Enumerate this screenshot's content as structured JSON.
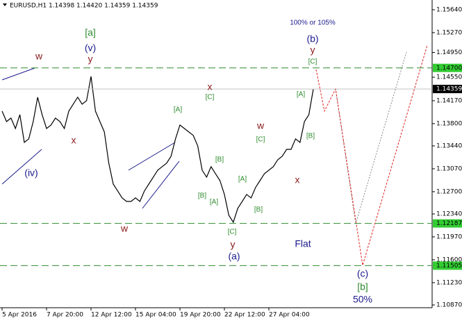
{
  "chart_data": {
    "type": "line",
    "title": "EURUSD,H1  1.14398 1.14420 1.14359 1.14359",
    "color": "#000000",
    "categories": [
      "5 Apr 2016",
      null,
      null,
      null,
      null,
      null,
      null,
      null,
      null,
      null,
      "7 Apr 20:00",
      null,
      null,
      null,
      null,
      null,
      null,
      null,
      null,
      null,
      "12 Apr 12:00",
      null,
      null,
      null,
      null,
      null,
      null,
      null,
      null,
      null,
      "15 Apr 04:00",
      null,
      null,
      null,
      null,
      null,
      null,
      null,
      null,
      null,
      "19 Apr 20:00",
      null,
      null,
      null,
      null,
      null,
      null,
      null,
      null,
      null,
      "22 Apr 12:00",
      null,
      null,
      null,
      null,
      null,
      null,
      null,
      null,
      null,
      "27 Apr 04:00",
      null,
      null,
      null,
      null,
      null,
      null,
      null,
      null,
      null,
      null
    ],
    "values": [
      1.14001,
      1.13833,
      1.13889,
      1.13721,
      1.13945,
      1.13496,
      1.13553,
      1.13833,
      1.14226,
      1.13945,
      1.13721,
      1.13777,
      1.13889,
      1.13833,
      1.13721,
      1.14001,
      1.14114,
      1.14226,
      1.14114,
      1.1417,
      1.14563,
      1.14001,
      1.13833,
      1.13665,
      1.1316,
      1.12823,
      1.12711,
      1.12599,
      1.12542,
      1.12542,
      1.12599,
      1.12542,
      1.12711,
      1.12823,
      1.12935,
      1.13047,
      1.13104,
      1.1316,
      1.13272,
      1.13553,
      1.13777,
      1.13721,
      1.13665,
      1.13609,
      1.1344,
      1.13047,
      1.12935,
      1.13104,
      1.12991,
      1.12879,
      1.12655,
      1.12318,
      1.12206,
      1.1243,
      1.12542,
      1.12655,
      1.12599,
      1.12767,
      1.12879,
      1.12991,
      1.13047,
      1.13104,
      1.13216,
      1.13272,
      1.13384,
      1.13384,
      1.13553,
      1.13496,
      1.13833,
      1.13945,
      1.14359
    ],
    "ylim": [
      1.1087,
      1.1564
    ],
    "yticks": [
      {
        "value": 1.1564,
        "label": "1.15640"
      },
      {
        "value": 1.1527,
        "label": "1.15270"
      },
      {
        "value": 1.1495,
        "label": "1.14950"
      },
      {
        "value": 1.1455,
        "label": "1.14550"
      },
      {
        "value": 1.1417,
        "label": "1.14170"
      },
      {
        "value": 1.138,
        "label": "1.13800"
      },
      {
        "value": 1.1344,
        "label": "1.13440"
      },
      {
        "value": 1.1307,
        "label": "1.13070"
      },
      {
        "value": 1.127,
        "label": "1.12700"
      },
      {
        "value": 1.1234,
        "label": "1.12340"
      },
      {
        "value": 1.1197,
        "label": "1.11970"
      },
      {
        "value": 1.116,
        "label": "1.11600"
      },
      {
        "value": 1.1123,
        "label": "1.11230"
      },
      {
        "value": 1.1087,
        "label": "1.10870"
      }
    ],
    "levels": [
      {
        "value": 1.147,
        "label": "1.14700",
        "color": "#2e8b2e",
        "box": "#33cc33",
        "text_color": "#000000",
        "dashed": true
      },
      {
        "value": 1.14359,
        "label": "1.14359",
        "color": "#c0c0c0",
        "box": "#000000",
        "text_color": "#ffffff",
        "dashed": false
      },
      {
        "value": 1.12187,
        "label": "1.12187",
        "color": "#2e8b2e",
        "box": "#33cc33",
        "text_color": "#000000",
        "dashed": true
      },
      {
        "value": 1.11505,
        "label": "1.11505",
        "color": "#2e8b2e",
        "box": "#33cc33",
        "text_color": "#000000",
        "dashed": true
      }
    ],
    "annotations": [
      {
        "text": "w",
        "color": "#8b1a1a"
      },
      {
        "text": "[a]",
        "color": "#2e8b2e"
      },
      {
        "text": "(v)",
        "color": "#1a1a8c"
      },
      {
        "text": "y",
        "color": "#8b1a1a"
      },
      {
        "text": "x",
        "color": "#8b1a1a"
      },
      {
        "text": "(iv)",
        "color": "#1a1a8c"
      },
      {
        "text": "[A]",
        "color": "#2e8b2e"
      },
      {
        "text": "[B]",
        "color": "#2e8b2e"
      },
      {
        "text": "[B]",
        "color": "#2e8b2e"
      },
      {
        "text": "[A]",
        "color": "#2e8b2e"
      },
      {
        "text": "[C]",
        "color": "#2e8b2e"
      },
      {
        "text": "x",
        "color": "#8b1a1a"
      },
      {
        "text": "w",
        "color": "#8b1a1a"
      },
      {
        "text": "[C]",
        "color": "#2e8b2e"
      },
      {
        "text": "y",
        "color": "#8b1a1a"
      },
      {
        "text": "(a)",
        "color": "#1a1a8c"
      },
      {
        "text": "[A]",
        "color": "#2e8b2e"
      },
      {
        "text": "[B]",
        "color": "#2e8b2e"
      },
      {
        "text": "w",
        "color": "#8b1a1a"
      },
      {
        "text": "[C]",
        "color": "#2e8b2e"
      },
      {
        "text": "x",
        "color": "#8b1a1a"
      },
      {
        "text": "[A]",
        "color": "#2e8b2e"
      },
      {
        "text": "[B]",
        "color": "#2e8b2e"
      },
      {
        "text": "[C]",
        "color": "#2e8b2e"
      },
      {
        "text": "y",
        "color": "#8b1a1a"
      },
      {
        "text": "(b)",
        "color": "#1a1a8c"
      },
      {
        "text": "100% or 105%",
        "color": "#1a1a8c"
      },
      {
        "text": "Flat",
        "color": "#1a1a8c"
      },
      {
        "text": "(c)",
        "color": "#1a1a8c"
      },
      {
        "text": "[b]",
        "color": "#2e8b2e"
      },
      {
        "text": "50%",
        "color": "#1a1a8c"
      }
    ]
  }
}
